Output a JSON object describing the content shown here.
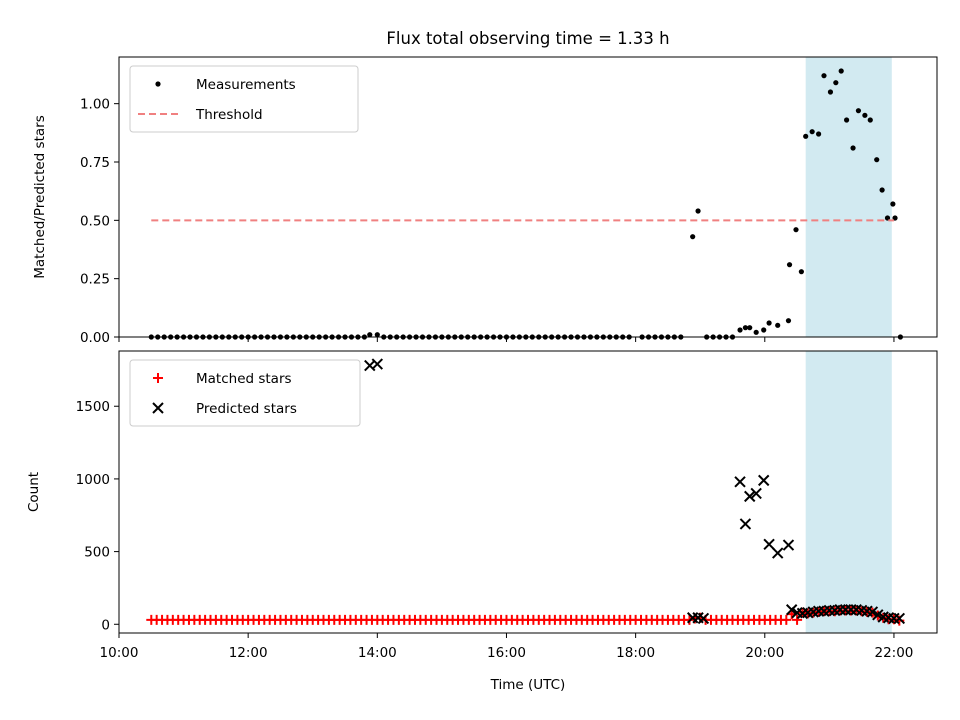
{
  "chart_data": [
    {
      "type": "scatter",
      "title": "Flux total observing time = 1.33 h",
      "xlabel": "",
      "ylabel": "Matched/Predicted stars",
      "ylim": [
        0,
        1.2
      ],
      "yticks": [
        "0.00",
        "0.25",
        "0.50",
        "0.75",
        "1.00"
      ],
      "legend_position": "upper left",
      "shaded_interval": {
        "start": "20:38",
        "end": "21:58",
        "color": "#add8e6"
      },
      "series": [
        {
          "name": "Measurements",
          "kind": "scatter",
          "color": "#000000",
          "points": [
            [
              "10:30",
              0
            ],
            [
              "10:36",
              0
            ],
            [
              "10:42",
              0
            ],
            [
              "10:48",
              0
            ],
            [
              "10:54",
              0
            ],
            [
              "11:00",
              0
            ],
            [
              "11:06",
              0
            ],
            [
              "11:12",
              0
            ],
            [
              "11:18",
              0
            ],
            [
              "11:24",
              0
            ],
            [
              "11:30",
              0
            ],
            [
              "11:36",
              0
            ],
            [
              "11:42",
              0
            ],
            [
              "11:48",
              0
            ],
            [
              "11:54",
              0
            ],
            [
              "12:00",
              0
            ],
            [
              "12:06",
              0
            ],
            [
              "12:12",
              0
            ],
            [
              "12:18",
              0
            ],
            [
              "12:24",
              0
            ],
            [
              "12:30",
              0
            ],
            [
              "12:36",
              0
            ],
            [
              "12:42",
              0
            ],
            [
              "12:48",
              0
            ],
            [
              "12:54",
              0
            ],
            [
              "13:00",
              0
            ],
            [
              "13:06",
              0
            ],
            [
              "13:12",
              0
            ],
            [
              "13:18",
              0
            ],
            [
              "13:24",
              0
            ],
            [
              "13:30",
              0
            ],
            [
              "13:36",
              0
            ],
            [
              "13:42",
              0
            ],
            [
              "13:48",
              0
            ],
            [
              "13:53",
              0.01
            ],
            [
              "14:00",
              0.01
            ],
            [
              "14:06",
              0
            ],
            [
              "14:12",
              0
            ],
            [
              "14:18",
              0
            ],
            [
              "14:24",
              0
            ],
            [
              "14:30",
              0
            ],
            [
              "14:36",
              0
            ],
            [
              "14:42",
              0
            ],
            [
              "14:48",
              0
            ],
            [
              "14:54",
              0
            ],
            [
              "15:00",
              0
            ],
            [
              "15:06",
              0
            ],
            [
              "15:12",
              0
            ],
            [
              "15:18",
              0
            ],
            [
              "15:24",
              0
            ],
            [
              "15:30",
              0
            ],
            [
              "15:36",
              0
            ],
            [
              "15:42",
              0
            ],
            [
              "15:48",
              0
            ],
            [
              "15:54",
              0
            ],
            [
              "16:00",
              0
            ],
            [
              "16:06",
              0
            ],
            [
              "16:12",
              0
            ],
            [
              "16:18",
              0
            ],
            [
              "16:24",
              0
            ],
            [
              "16:30",
              0
            ],
            [
              "16:36",
              0
            ],
            [
              "16:42",
              0
            ],
            [
              "16:48",
              0
            ],
            [
              "16:54",
              0
            ],
            [
              "17:00",
              0
            ],
            [
              "17:06",
              0
            ],
            [
              "17:12",
              0
            ],
            [
              "17:18",
              0
            ],
            [
              "17:24",
              0
            ],
            [
              "17:30",
              0
            ],
            [
              "17:36",
              0
            ],
            [
              "17:42",
              0
            ],
            [
              "17:48",
              0
            ],
            [
              "17:54",
              0
            ],
            [
              "18:06",
              0
            ],
            [
              "18:12",
              0
            ],
            [
              "18:18",
              0
            ],
            [
              "18:24",
              0
            ],
            [
              "18:30",
              0
            ],
            [
              "18:36",
              0
            ],
            [
              "18:42",
              0
            ],
            [
              "18:53",
              0.43
            ],
            [
              "18:58",
              0.54
            ],
            [
              "19:06",
              0
            ],
            [
              "19:12",
              0
            ],
            [
              "19:18",
              0
            ],
            [
              "19:24",
              0
            ],
            [
              "19:30",
              0
            ],
            [
              "19:37",
              0.03
            ],
            [
              "19:42",
              0.04
            ],
            [
              "19:46",
              0.04
            ],
            [
              "19:52",
              0.02
            ],
            [
              "19:59",
              0.03
            ],
            [
              "20:04",
              0.06
            ],
            [
              "20:12",
              0.05
            ],
            [
              "20:22",
              0.07
            ],
            [
              "20:23",
              0.31
            ],
            [
              "20:29",
              0.46
            ],
            [
              "20:34",
              0.28
            ],
            [
              "20:38",
              0.86
            ],
            [
              "20:44",
              0.88
            ],
            [
              "20:50",
              0.87
            ],
            [
              "20:55",
              1.12
            ],
            [
              "21:01",
              1.05
            ],
            [
              "21:06",
              1.09
            ],
            [
              "21:11",
              1.14
            ],
            [
              "21:16",
              0.93
            ],
            [
              "21:22",
              0.81
            ],
            [
              "21:27",
              0.97
            ],
            [
              "21:33",
              0.95
            ],
            [
              "21:38",
              0.93
            ],
            [
              "21:44",
              0.76
            ],
            [
              "21:49",
              0.63
            ],
            [
              "21:54",
              0.51
            ],
            [
              "21:59",
              0.57
            ],
            [
              "22:01",
              0.51
            ],
            [
              "22:06",
              0
            ]
          ]
        },
        {
          "name": "Threshold",
          "kind": "line",
          "color": "#f08080",
          "x": [
            "10:30",
            "22:00"
          ],
          "y": [
            0.5,
            0.5
          ]
        }
      ]
    },
    {
      "type": "scatter",
      "title": "",
      "xlabel": "Time (UTC)",
      "ylabel": "Count",
      "ylim": [
        -60,
        1880
      ],
      "xlim": [
        "10:00",
        "22:40"
      ],
      "xticks": [
        "10:00",
        "12:00",
        "14:00",
        "16:00",
        "18:00",
        "20:00",
        "22:00"
      ],
      "yticks": [
        "0",
        "500",
        "1000",
        "1500"
      ],
      "legend_position": "upper left",
      "shaded_interval": {
        "start": "20:38",
        "end": "21:58",
        "color": "#add8e6"
      },
      "series": [
        {
          "name": "Matched stars",
          "kind": "plus",
          "color": "#ff0000",
          "points_rule": "every 5 minutes from 10:30 to 22:05",
          "default_value": 30,
          "overrides": [
            [
              "18:55",
              40
            ],
            [
              "19:00",
              45
            ],
            [
              "20:25",
              70
            ],
            [
              "20:35",
              80
            ],
            [
              "20:40",
              75
            ],
            [
              "20:45",
              80
            ],
            [
              "20:50",
              85
            ],
            [
              "20:55",
              90
            ],
            [
              "21:00",
              90
            ],
            [
              "21:05",
              90
            ],
            [
              "21:10",
              95
            ],
            [
              "21:15",
              95
            ],
            [
              "21:20",
              95
            ],
            [
              "21:25",
              95
            ],
            [
              "21:30",
              90
            ],
            [
              "21:35",
              85
            ],
            [
              "21:40",
              80
            ],
            [
              "21:45",
              60
            ],
            [
              "21:50",
              45
            ],
            [
              "21:55",
              35
            ],
            [
              "22:00",
              35
            ],
            [
              "22:05",
              25
            ]
          ]
        },
        {
          "name": "Predicted stars",
          "kind": "x",
          "color": "#000000",
          "points": [
            [
              "13:53",
              1780
            ],
            [
              "14:00",
              1790
            ],
            [
              "18:53",
              45
            ],
            [
              "18:58",
              45
            ],
            [
              "19:03",
              40
            ],
            [
              "19:37",
              980
            ],
            [
              "19:42",
              690
            ],
            [
              "19:46",
              880
            ],
            [
              "19:52",
              900
            ],
            [
              "19:59",
              990
            ],
            [
              "20:04",
              550
            ],
            [
              "20:12",
              490
            ],
            [
              "20:22",
              545
            ],
            [
              "20:25",
              100
            ],
            [
              "20:30",
              80
            ],
            [
              "20:35",
              75
            ],
            [
              "20:40",
              80
            ],
            [
              "20:45",
              85
            ],
            [
              "20:50",
              90
            ],
            [
              "20:55",
              90
            ],
            [
              "21:00",
              95
            ],
            [
              "21:05",
              95
            ],
            [
              "21:10",
              100
            ],
            [
              "21:15",
              100
            ],
            [
              "21:20",
              100
            ],
            [
              "21:25",
              100
            ],
            [
              "21:30",
              95
            ],
            [
              "21:35",
              90
            ],
            [
              "21:40",
              85
            ],
            [
              "21:45",
              65
            ],
            [
              "21:50",
              50
            ],
            [
              "21:55",
              45
            ],
            [
              "22:00",
              40
            ],
            [
              "22:05",
              40
            ]
          ]
        }
      ]
    }
  ]
}
